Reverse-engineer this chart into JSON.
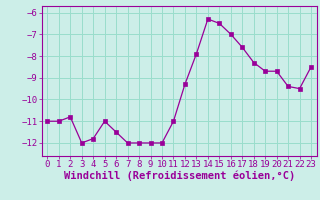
{
  "x": [
    0,
    1,
    2,
    3,
    4,
    5,
    6,
    7,
    8,
    9,
    10,
    11,
    12,
    13,
    14,
    15,
    16,
    17,
    18,
    19,
    20,
    21,
    22,
    23
  ],
  "y": [
    -11,
    -11,
    -10.8,
    -12,
    -11.8,
    -11,
    -11.5,
    -12,
    -12,
    -12,
    -12,
    -11,
    -9.3,
    -7.9,
    -6.3,
    -6.5,
    -7,
    -7.6,
    -8.3,
    -8.7,
    -8.7,
    -9.4,
    -9.5,
    -8.5
  ],
  "line_color": "#990099",
  "marker": "s",
  "marker_size": 2.5,
  "bg_color": "#cceee8",
  "grid_color": "#99ddcc",
  "xlabel": "Windchill (Refroidissement éolien,°C)",
  "xlabel_color": "#990099",
  "tick_color": "#990099",
  "spine_color": "#990099",
  "ylim": [
    -12.6,
    -5.7
  ],
  "xlim": [
    -0.5,
    23.5
  ],
  "yticks": [
    -12,
    -11,
    -10,
    -9,
    -8,
    -7,
    -6
  ],
  "xticks": [
    0,
    1,
    2,
    3,
    4,
    5,
    6,
    7,
    8,
    9,
    10,
    11,
    12,
    13,
    14,
    15,
    16,
    17,
    18,
    19,
    20,
    21,
    22,
    23
  ],
  "tick_fontsize": 6.5,
  "xlabel_fontsize": 7.5
}
